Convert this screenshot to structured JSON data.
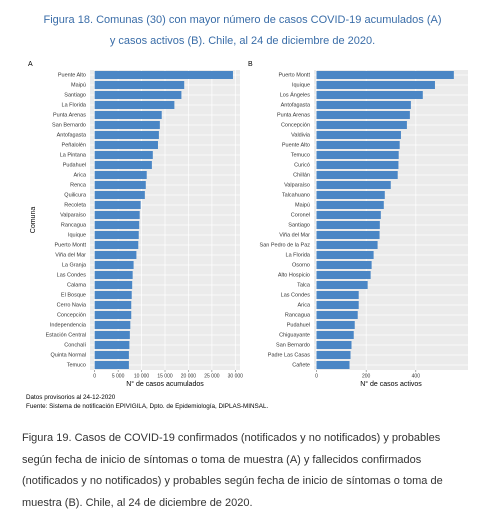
{
  "caption_top": "Figura 18. Comunas (30) con mayor número de casos COVID-19 acumulados (A) y casos activos (B). Chile, al 24 de diciembre de 2020.",
  "chart_data": [
    {
      "type": "bar",
      "orientation": "horizontal",
      "panel": "A",
      "y_label": "Comuna",
      "x_label": "N° de casos acumulados",
      "color": "#4a86c5",
      "background": "#ebebeb",
      "grid": true,
      "categories": [
        "Puente Alto",
        "Maipú",
        "Santiago",
        "La Florida",
        "Punta Arenas",
        "San Bernardo",
        "Antofagasta",
        "Peñalolén",
        "La Pintana",
        "Pudahuel",
        "Arica",
        "Renca",
        "Quilicura",
        "Recoleta",
        "Valparaíso",
        "Rancagua",
        "Iquique",
        "Puerto Montt",
        "Viña del Mar",
        "La Granja",
        "Las Condes",
        "Calama",
        "El Bosque",
        "Cerro Navia",
        "Concepción",
        "Independencia",
        "Estación Central",
        "Conchalí",
        "Quinta Normal",
        "Temuco"
      ],
      "values": [
        29500,
        19100,
        18500,
        17000,
        14300,
        13900,
        13700,
        13500,
        12400,
        12200,
        11100,
        10900,
        10700,
        9800,
        9600,
        9500,
        9400,
        9300,
        8900,
        8300,
        8100,
        8000,
        7900,
        7800,
        7800,
        7600,
        7500,
        7400,
        7300,
        7300
      ],
      "xlim": [
        -1000,
        31000
      ],
      "xticks": [
        0,
        {
          "value": 5000,
          "label": "5 000"
        },
        {
          "value": 10000,
          "label": "10 000"
        },
        {
          "value": 15000,
          "label": "15 000"
        },
        {
          "value": 20000,
          "label": "20 000"
        },
        {
          "value": 25000,
          "label": "25 000"
        },
        {
          "value": 30000,
          "label": "30 000"
        }
      ]
    },
    {
      "type": "bar",
      "orientation": "horizontal",
      "panel": "B",
      "x_label": "N° de casos activos",
      "color": "#4a86c5",
      "background": "#ebebeb",
      "grid": true,
      "categories": [
        "Puerto Montt",
        "Iquique",
        "Los Ángeles",
        "Antofagasta",
        "Punta Arenas",
        "Concepción",
        "Valdivia",
        "Puente Alto",
        "Temuco",
        "Curicó",
        "Chillán",
        "Valparaíso",
        "Talcahuano",
        "Maipú",
        "Coronel",
        "Santiago",
        "Viña del Mar",
        "San Pedro de la Paz",
        "La Florida",
        "Osorno",
        "Alto Hospicio",
        "Talca",
        "Las Condes",
        "Arica",
        "Rancagua",
        "Pudahuel",
        "Chiguayante",
        "San Bernardo",
        "Padre Las Casas",
        "Cañete"
      ],
      "values": [
        553,
        477,
        428,
        380,
        376,
        364,
        340,
        335,
        331,
        330,
        327,
        299,
        275,
        271,
        259,
        255,
        254,
        246,
        230,
        222,
        218,
        206,
        170,
        170,
        166,
        154,
        150,
        141,
        137,
        133
      ],
      "xlim": [
        -10,
        610
      ],
      "xticks": [
        0,
        200,
        400
      ]
    }
  ],
  "notes": [
    "Datos provisorios al 24-12-2020",
    "Fuente: Sistema de notificación EPIVIGILA, Dpto. de Epidemiología, DIPLAS-MINSAL."
  ],
  "caption_bottom": "Figura 19. Casos de COVID-19 confirmados (notificados y no notificados) y probables según fecha de inicio de síntomas o toma de muestra (A) y fallecidos confirmados (notificados y no notificados) y probables según fecha de inicio de síntomas o toma de muestra (B). Chile, al 24 de diciembre de 2020."
}
